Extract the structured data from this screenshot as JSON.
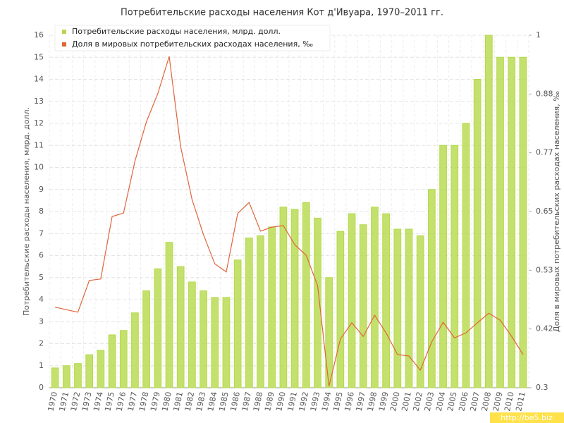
{
  "chart_data": {
    "type": "bar",
    "title": "Потребительские расходы населения Кот д'Ивуара, 1970–2011 гг.",
    "ylabel": "Потребительские расходы населения, млрд. долл.",
    "y2label": "Доля в мировых потребительских расходах населения, ‰",
    "watermark": "http://be5.biz",
    "categories": [
      "1970",
      "1971",
      "1972",
      "1973",
      "1974",
      "1975",
      "1976",
      "1977",
      "1978",
      "1979",
      "1980",
      "1981",
      "1982",
      "1983",
      "1984",
      "1985",
      "1986",
      "1987",
      "1988",
      "1989",
      "1990",
      "1991",
      "1992",
      "1993",
      "1994",
      "1995",
      "1996",
      "1997",
      "1998",
      "1999",
      "2000",
      "2001",
      "2002",
      "2003",
      "2004",
      "2005",
      "2006",
      "2007",
      "2008",
      "2009",
      "2010",
      "2011"
    ],
    "series": [
      {
        "name": "Потребительские расходы населения, млрд. долл.",
        "type": "bar",
        "color": "#b5d94a",
        "values": [
          0.9,
          1.0,
          1.1,
          1.5,
          1.7,
          2.4,
          2.6,
          3.4,
          4.4,
          5.4,
          6.6,
          5.5,
          4.8,
          4.4,
          4.1,
          4.1,
          5.8,
          6.8,
          6.9,
          7.3,
          8.2,
          8.1,
          8.4,
          7.7,
          5.0,
          7.1,
          7.9,
          7.4,
          8.2,
          7.9,
          7.2,
          7.2,
          6.9,
          9.0,
          11,
          11,
          12,
          14,
          16,
          15,
          15,
          15
        ]
      },
      {
        "name": "Доля в мировых потребительских расходах населения, ‰",
        "type": "line",
        "axis": "y2",
        "color": "#e0653a",
        "values": [
          0.46,
          0.455,
          0.45,
          0.513,
          0.516,
          0.64,
          0.647,
          0.75,
          0.828,
          0.884,
          0.958,
          0.779,
          0.674,
          0.604,
          0.546,
          0.53,
          0.646,
          0.668,
          0.611,
          0.619,
          0.622,
          0.584,
          0.563,
          0.503,
          0.303,
          0.397,
          0.429,
          0.402,
          0.444,
          0.409,
          0.366,
          0.363,
          0.335,
          0.391,
          0.43,
          0.399,
          0.409,
          0.429,
          0.448,
          0.434,
          0.402,
          0.366
        ]
      }
    ],
    "ylim": [
      0,
      16
    ],
    "yticks": [
      0,
      1,
      2,
      3,
      4,
      5,
      6,
      7,
      8,
      9,
      10,
      11,
      12,
      13,
      14,
      15,
      16
    ],
    "y2lim": [
      0.3,
      1
    ],
    "y2ticks": [
      0.3,
      {
        "value": 0.4167,
        "label": "0.42"
      },
      {
        "value": 0.5333,
        "label": "0.53"
      },
      0.65,
      {
        "value": 0.7667,
        "label": "0.77"
      },
      {
        "value": 0.8833,
        "label": "0.88"
      },
      1
    ],
    "grid": true,
    "legend": "top-left"
  }
}
